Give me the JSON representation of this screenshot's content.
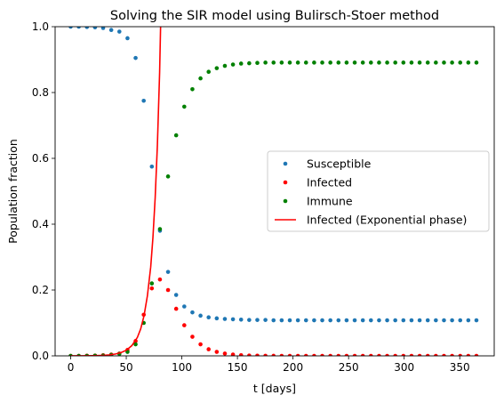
{
  "chart_data": {
    "type": "scatter",
    "title": "Solving the SIR model using Bulirsch-Stoer method",
    "xlabel": "t [days]",
    "ylabel": "Population fraction",
    "xlim": [
      -14,
      381
    ],
    "ylim": [
      0,
      1
    ],
    "xticks": [
      0,
      50,
      100,
      150,
      200,
      250,
      300,
      350
    ],
    "yticks": [
      0.0,
      0.2,
      0.4,
      0.6,
      0.8,
      1.0
    ],
    "grid": false,
    "legend_position": "center-right",
    "x": [
      0,
      7.3,
      14.6,
      21.9,
      29.2,
      36.5,
      43.8,
      51.1,
      58.4,
      65.7,
      73,
      80.3,
      87.6,
      94.9,
      102.2,
      109.5,
      116.8,
      124.1,
      131.4,
      138.7,
      146,
      153.3,
      160.6,
      167.9,
      175.2,
      182.5,
      189.8,
      197.1,
      204.4,
      211.7,
      219,
      226.3,
      233.6,
      240.9,
      248.2,
      255.5,
      262.8,
      270.1,
      277.4,
      284.7,
      292,
      299.3,
      306.6,
      313.9,
      321.2,
      328.5,
      335.8,
      343.1,
      350.4,
      357.7,
      365
    ],
    "series": [
      {
        "name": "Susceptible",
        "kind": "scatter",
        "color": "#1f77b4",
        "values": [
          1.0,
          1.0,
          0.999,
          0.998,
          0.996,
          0.99,
          0.985,
          0.965,
          0.905,
          0.775,
          0.575,
          0.38,
          0.255,
          0.185,
          0.15,
          0.132,
          0.122,
          0.117,
          0.114,
          0.112,
          0.111,
          0.11,
          0.109,
          0.109,
          0.109,
          0.108,
          0.108,
          0.108,
          0.108,
          0.108,
          0.108,
          0.108,
          0.108,
          0.108,
          0.108,
          0.108,
          0.108,
          0.108,
          0.108,
          0.108,
          0.108,
          0.108,
          0.108,
          0.108,
          0.108,
          0.108,
          0.108,
          0.108,
          0.108,
          0.108,
          0.108
        ]
      },
      {
        "name": "Infected",
        "kind": "scatter",
        "color": "#ff0000",
        "values": [
          0.0,
          0.0,
          0.0005,
          0.001,
          0.002,
          0.004,
          0.007,
          0.018,
          0.045,
          0.125,
          0.205,
          0.232,
          0.2,
          0.143,
          0.093,
          0.058,
          0.035,
          0.02,
          0.012,
          0.007,
          0.004,
          0.002,
          0.001,
          0.0005,
          0.0002,
          0.0001,
          0,
          0,
          0,
          0,
          0,
          0,
          0,
          0,
          0,
          0,
          0,
          0,
          0,
          0,
          0,
          0,
          0,
          0,
          0,
          0,
          0,
          0,
          0,
          0,
          0
        ]
      },
      {
        "name": "Immune",
        "kind": "scatter",
        "color": "#008000",
        "values": [
          0.0,
          0.0,
          0.0,
          0.0005,
          0.001,
          0.003,
          0.006,
          0.012,
          0.035,
          0.1,
          0.22,
          0.385,
          0.545,
          0.67,
          0.757,
          0.81,
          0.843,
          0.863,
          0.874,
          0.881,
          0.885,
          0.888,
          0.889,
          0.89,
          0.891,
          0.891,
          0.891,
          0.891,
          0.891,
          0.891,
          0.891,
          0.891,
          0.891,
          0.891,
          0.891,
          0.891,
          0.891,
          0.891,
          0.891,
          0.891,
          0.891,
          0.891,
          0.891,
          0.891,
          0.891,
          0.891,
          0.891,
          0.891,
          0.891,
          0.891,
          0.891
        ]
      },
      {
        "name": "Infected (Exponential phase)",
        "kind": "line",
        "color": "#ff0000",
        "x": [
          0,
          10,
          20,
          30,
          35,
          40,
          45,
          50,
          55,
          60,
          63,
          66,
          69,
          72,
          74,
          76,
          78,
          80,
          81
        ],
        "values": [
          0.0001,
          0.0002,
          0.0006,
          0.0016,
          0.003,
          0.0054,
          0.0095,
          0.017,
          0.031,
          0.056,
          0.082,
          0.122,
          0.182,
          0.27,
          0.36,
          0.48,
          0.64,
          0.86,
          1.02
        ]
      }
    ]
  }
}
